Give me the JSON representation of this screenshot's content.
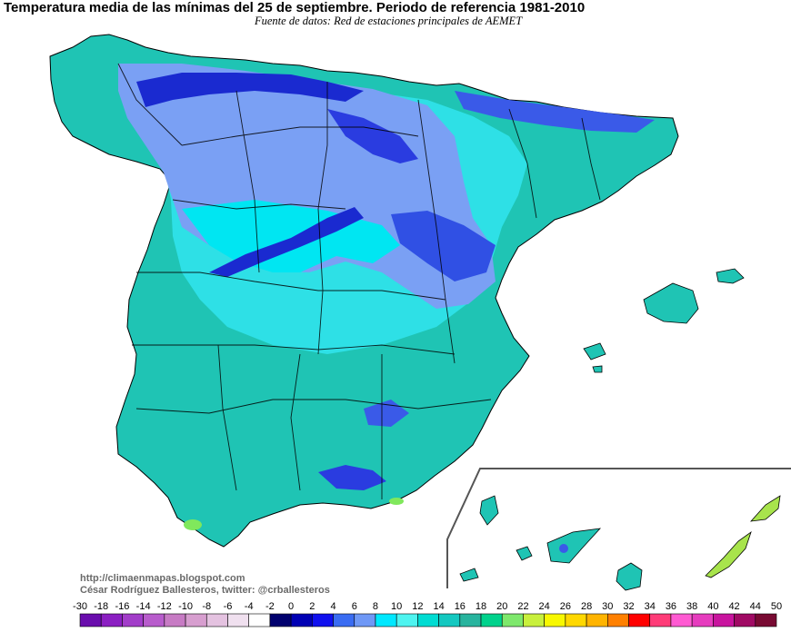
{
  "header": {
    "title": "Temperatura media de las mínimas del 25 de septiembre. Periodo de referencia 1981-2010",
    "subtitle": "Fuente de datos: Red de estaciones principales de AEMET"
  },
  "credits": {
    "url": "http://climaenmapas.blogspot.com",
    "author": "César Rodríguez Ballesteros, twitter: @crballesteros"
  },
  "legend": {
    "ticks": [
      "-30",
      "-18",
      "-16",
      "-14",
      "-12",
      "-10",
      "-8",
      "-6",
      "-4",
      "-2",
      "0",
      "2",
      "4",
      "6",
      "8",
      "10",
      "12",
      "14",
      "16",
      "18",
      "20",
      "22",
      "24",
      "26",
      "28",
      "30",
      "32",
      "34",
      "36",
      "38",
      "40",
      "42",
      "44",
      "50"
    ],
    "colors": [
      "#6a0dad",
      "#8b1fc2",
      "#a23dc9",
      "#b85ccc",
      "#c77bc4",
      "#d79ecf",
      "#e4c2e0",
      "#f0e0ef",
      "#ffffff",
      "#00006e",
      "#0000b4",
      "#1010ee",
      "#3a6cf2",
      "#6f98f6",
      "#00e8ff",
      "#4ef4f0",
      "#00dcd2",
      "#14c8c0",
      "#28b49e",
      "#00d28c",
      "#7ee86c",
      "#c8f03c",
      "#f8f800",
      "#ffd800",
      "#ffb400",
      "#ff8000",
      "#ff0000",
      "#ff3c78",
      "#ff5ad2",
      "#e63cbe",
      "#c8149e",
      "#a00a64",
      "#780a32"
    ]
  },
  "palette": {
    "sea": "#ffffff",
    "border": "#000000",
    "coastal": "#1fc4b4",
    "mid": "#00e0e8",
    "cold": "#7aa0f4",
    "colder": "#4a70ee",
    "coldest": "#1a2ad0",
    "warm": "#80e85c"
  }
}
